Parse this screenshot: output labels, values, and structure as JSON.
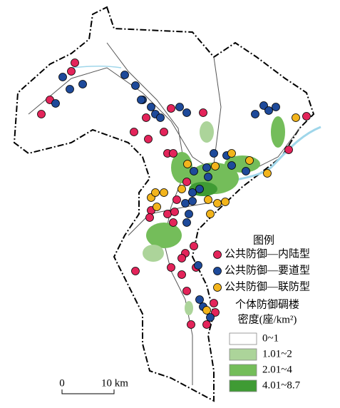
{
  "map": {
    "legend": {
      "title": "图例",
      "items": [
        {
          "label": "公共防御—内陆型",
          "color": "#e3245a"
        },
        {
          "label": "公共防御—要道型",
          "color": "#1e4a9a"
        },
        {
          "label": "公共防御—联防型",
          "color": "#f2b41c"
        }
      ],
      "density_title": "个体防御碉楼",
      "density_unit": "密度(座/km²)",
      "density_classes": [
        {
          "label": "0~1",
          "color": "#ffffff"
        },
        {
          "label": "1.01~2",
          "color": "#acd49a"
        },
        {
          "label": "2.01~4",
          "color": "#74bd5a"
        },
        {
          "label": "4.01~8.7",
          "color": "#3f9b34"
        }
      ]
    },
    "scale_bar": {
      "start": "0",
      "end": "10 km"
    }
  }
}
